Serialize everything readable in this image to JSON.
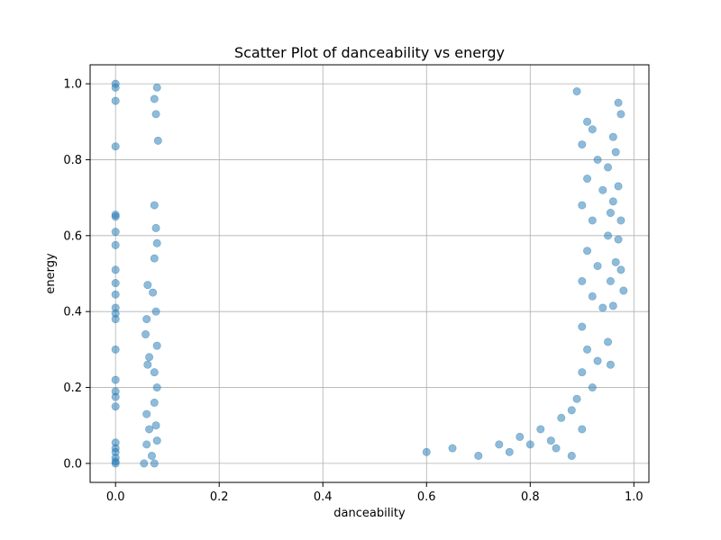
{
  "chart_data": {
    "type": "scatter",
    "title": "Scatter Plot of danceability vs energy",
    "xlabel": "danceability",
    "ylabel": "energy",
    "xlim": [
      -0.049,
      1.029
    ],
    "ylim": [
      -0.05,
      1.05
    ],
    "xticks": [
      0.0,
      0.2,
      0.4,
      0.6,
      0.8,
      1.0
    ],
    "yticks": [
      0.0,
      0.2,
      0.4,
      0.6,
      0.8,
      1.0
    ],
    "xtick_labels": [
      "0.0",
      "0.2",
      "0.4",
      "0.6",
      "0.8",
      "1.0"
    ],
    "ytick_labels": [
      "0.0",
      "0.2",
      "0.4",
      "0.6",
      "0.8",
      "1.0"
    ],
    "grid": true,
    "marker_color": "#1f77b4",
    "marker_alpha": 0.5,
    "points": [
      [
        0.0,
        1.0
      ],
      [
        0.0,
        0.99
      ],
      [
        0.0,
        0.955
      ],
      [
        0.0,
        0.835
      ],
      [
        0.0,
        0.655
      ],
      [
        0.0,
        0.65
      ],
      [
        0.0,
        0.61
      ],
      [
        0.0,
        0.575
      ],
      [
        0.0,
        0.51
      ],
      [
        0.0,
        0.475
      ],
      [
        0.0,
        0.445
      ],
      [
        0.0,
        0.41
      ],
      [
        0.0,
        0.395
      ],
      [
        0.0,
        0.38
      ],
      [
        0.0,
        0.3
      ],
      [
        0.0,
        0.22
      ],
      [
        0.0,
        0.19
      ],
      [
        0.0,
        0.175
      ],
      [
        0.0,
        0.15
      ],
      [
        0.0,
        0.055
      ],
      [
        0.0,
        0.04
      ],
      [
        0.0,
        0.03
      ],
      [
        0.0,
        0.015
      ],
      [
        0.0,
        0.005
      ],
      [
        0.0,
        0.0
      ],
      [
        0.062,
        0.47
      ],
      [
        0.06,
        0.38
      ],
      [
        0.058,
        0.34
      ],
      [
        0.065,
        0.28
      ],
      [
        0.062,
        0.26
      ],
      [
        0.06,
        0.13
      ],
      [
        0.065,
        0.09
      ],
      [
        0.06,
        0.05
      ],
      [
        0.07,
        0.02
      ],
      [
        0.055,
        0.0
      ],
      [
        0.08,
        0.99
      ],
      [
        0.075,
        0.96
      ],
      [
        0.078,
        0.92
      ],
      [
        0.082,
        0.85
      ],
      [
        0.075,
        0.68
      ],
      [
        0.078,
        0.62
      ],
      [
        0.08,
        0.58
      ],
      [
        0.075,
        0.54
      ],
      [
        0.072,
        0.45
      ],
      [
        0.078,
        0.4
      ],
      [
        0.08,
        0.31
      ],
      [
        0.075,
        0.24
      ],
      [
        0.08,
        0.2
      ],
      [
        0.075,
        0.16
      ],
      [
        0.078,
        0.1
      ],
      [
        0.08,
        0.06
      ],
      [
        0.075,
        0.0
      ],
      [
        0.89,
        0.98
      ],
      [
        0.91,
        0.9
      ],
      [
        0.92,
        0.88
      ],
      [
        0.9,
        0.84
      ],
      [
        0.93,
        0.8
      ],
      [
        0.91,
        0.75
      ],
      [
        0.94,
        0.72
      ],
      [
        0.9,
        0.68
      ],
      [
        0.92,
        0.64
      ],
      [
        0.95,
        0.6
      ],
      [
        0.91,
        0.56
      ],
      [
        0.93,
        0.52
      ],
      [
        0.9,
        0.48
      ],
      [
        0.92,
        0.44
      ],
      [
        0.94,
        0.41
      ],
      [
        0.9,
        0.36
      ],
      [
        0.91,
        0.3
      ],
      [
        0.93,
        0.27
      ],
      [
        0.9,
        0.24
      ],
      [
        0.92,
        0.2
      ],
      [
        0.89,
        0.17
      ],
      [
        0.9,
        0.09
      ],
      [
        0.88,
        0.14
      ],
      [
        0.97,
        0.95
      ],
      [
        0.975,
        0.92
      ],
      [
        0.96,
        0.86
      ],
      [
        0.965,
        0.82
      ],
      [
        0.97,
        0.73
      ],
      [
        0.96,
        0.69
      ],
      [
        0.975,
        0.64
      ],
      [
        0.97,
        0.59
      ],
      [
        0.965,
        0.53
      ],
      [
        0.975,
        0.51
      ],
      [
        0.98,
        0.455
      ],
      [
        0.96,
        0.415
      ],
      [
        0.955,
        0.26
      ],
      [
        0.95,
        0.32
      ],
      [
        0.955,
        0.48
      ],
      [
        0.95,
        0.78
      ],
      [
        0.955,
        0.66
      ],
      [
        0.85,
        0.04
      ],
      [
        0.84,
        0.06
      ],
      [
        0.8,
        0.05
      ],
      [
        0.82,
        0.09
      ],
      [
        0.78,
        0.07
      ],
      [
        0.86,
        0.12
      ],
      [
        0.88,
        0.02
      ],
      [
        0.76,
        0.03
      ],
      [
        0.74,
        0.05
      ],
      [
        0.7,
        0.02
      ],
      [
        0.65,
        0.04
      ],
      [
        0.6,
        0.03
      ]
    ]
  }
}
